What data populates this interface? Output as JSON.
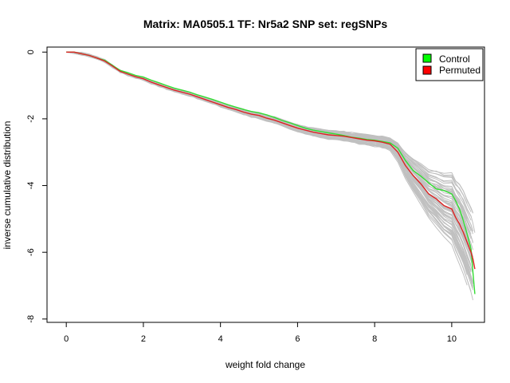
{
  "chart_data": {
    "type": "line",
    "title": "Matrix: MA0505.1 TF: Nr5a2 SNP set: regSNPs",
    "xlabel": "weight fold change",
    "ylabel": "inverse cumulative distribution",
    "xlim": [
      -0.5,
      10.85
    ],
    "ylim": [
      -8.1,
      0.15
    ],
    "x_ticks": [
      0,
      2,
      4,
      6,
      8,
      10
    ],
    "y_ticks": [
      0,
      -2,
      -4,
      -6,
      -8
    ],
    "grid": false,
    "legend": {
      "position": "top-right",
      "entries": [
        {
          "label": "Control",
          "color": "#00ff00"
        },
        {
          "label": "Permuted",
          "color": "#ff0000"
        }
      ]
    },
    "colors": {
      "background_runs": "#c0c0c0",
      "control": "#33dd33",
      "permuted": "#dd2222"
    },
    "background_run_count": 60,
    "series": [
      {
        "name": "Control",
        "x": [
          0,
          0.2,
          0.4,
          0.6,
          0.8,
          1.0,
          1.2,
          1.4,
          1.6,
          1.8,
          2.0,
          2.2,
          2.4,
          2.6,
          2.8,
          3.0,
          3.2,
          3.4,
          3.6,
          3.8,
          4.0,
          4.2,
          4.4,
          4.6,
          4.8,
          5.0,
          5.2,
          5.4,
          5.6,
          5.8,
          6.0,
          6.2,
          6.4,
          6.6,
          6.8,
          7.0,
          7.2,
          7.4,
          7.6,
          7.8,
          8.0,
          8.2,
          8.4,
          8.6,
          8.8,
          9.0,
          9.2,
          9.4,
          9.6,
          9.8,
          10.0,
          10.1,
          10.2,
          10.3,
          10.4,
          10.5,
          10.55,
          10.6
        ],
        "y": [
          0,
          0,
          -0.05,
          -0.1,
          -0.18,
          -0.25,
          -0.4,
          -0.55,
          -0.62,
          -0.7,
          -0.75,
          -0.84,
          -0.92,
          -1.0,
          -1.08,
          -1.14,
          -1.2,
          -1.28,
          -1.35,
          -1.42,
          -1.5,
          -1.58,
          -1.65,
          -1.72,
          -1.78,
          -1.82,
          -1.88,
          -1.96,
          -2.05,
          -2.12,
          -2.2,
          -2.28,
          -2.34,
          -2.38,
          -2.42,
          -2.46,
          -2.5,
          -2.55,
          -2.58,
          -2.62,
          -2.64,
          -2.68,
          -2.72,
          -2.88,
          -3.25,
          -3.55,
          -3.72,
          -3.92,
          -4.1,
          -4.15,
          -4.25,
          -4.45,
          -4.7,
          -5.05,
          -5.45,
          -5.9,
          -6.6,
          -7.25
        ]
      },
      {
        "name": "Permuted",
        "x": [
          0,
          0.2,
          0.4,
          0.6,
          0.8,
          1.0,
          1.2,
          1.4,
          1.6,
          1.8,
          2.0,
          2.2,
          2.4,
          2.6,
          2.8,
          3.0,
          3.2,
          3.4,
          3.6,
          3.8,
          4.0,
          4.2,
          4.4,
          4.6,
          4.8,
          5.0,
          5.2,
          5.4,
          5.6,
          5.8,
          6.0,
          6.2,
          6.4,
          6.6,
          6.8,
          7.0,
          7.2,
          7.4,
          7.6,
          7.8,
          8.0,
          8.2,
          8.4,
          8.6,
          8.8,
          9.0,
          9.2,
          9.4,
          9.6,
          9.8,
          10.0,
          10.1,
          10.2,
          10.3,
          10.4,
          10.5,
          10.55,
          10.6
        ],
        "y": [
          0,
          0,
          -0.05,
          -0.1,
          -0.18,
          -0.27,
          -0.42,
          -0.58,
          -0.66,
          -0.74,
          -0.8,
          -0.9,
          -0.98,
          -1.06,
          -1.14,
          -1.2,
          -1.26,
          -1.34,
          -1.42,
          -1.5,
          -1.58,
          -1.66,
          -1.72,
          -1.8,
          -1.86,
          -1.9,
          -1.98,
          -2.04,
          -2.12,
          -2.2,
          -2.28,
          -2.34,
          -2.4,
          -2.44,
          -2.48,
          -2.5,
          -2.52,
          -2.56,
          -2.6,
          -2.64,
          -2.66,
          -2.7,
          -2.76,
          -3.0,
          -3.4,
          -3.7,
          -3.95,
          -4.25,
          -4.4,
          -4.6,
          -4.7,
          -4.95,
          -5.15,
          -5.4,
          -5.7,
          -6.0,
          -6.2,
          -6.5
        ]
      }
    ]
  }
}
